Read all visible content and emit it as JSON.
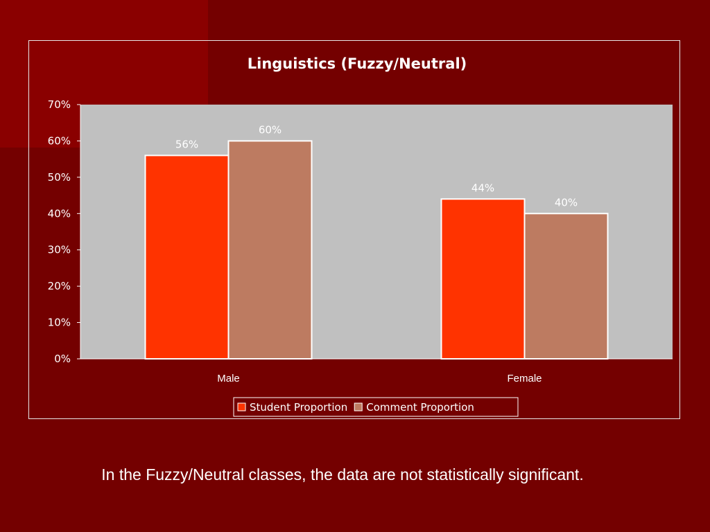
{
  "slide": {
    "caption": "In the Fuzzy/Neutral classes, the data are not statistically significant."
  },
  "colors": {
    "background": "#740000",
    "plot_area": "#c0c0c0",
    "student": "#ff3300",
    "comment": "#bd7b61",
    "text": "#ffffff"
  },
  "chart_data": {
    "type": "bar",
    "title": "Linguistics (Fuzzy/Neutral)",
    "categories": [
      "Male",
      "Female"
    ],
    "series": [
      {
        "name": "Student Proportion",
        "values": [
          0.56,
          0.44
        ],
        "labels": [
          "56%",
          "44%"
        ],
        "color": "#ff3300"
      },
      {
        "name": "Comment Proportion",
        "values": [
          0.6,
          0.4
        ],
        "labels": [
          "60%",
          "40%"
        ],
        "color": "#bd7b61"
      }
    ],
    "ylim": [
      0,
      0.7
    ],
    "y_ticks": [
      "0%",
      "10%",
      "20%",
      "30%",
      "40%",
      "50%",
      "60%",
      "70%"
    ],
    "grid": false,
    "legend_position": "bottom"
  }
}
